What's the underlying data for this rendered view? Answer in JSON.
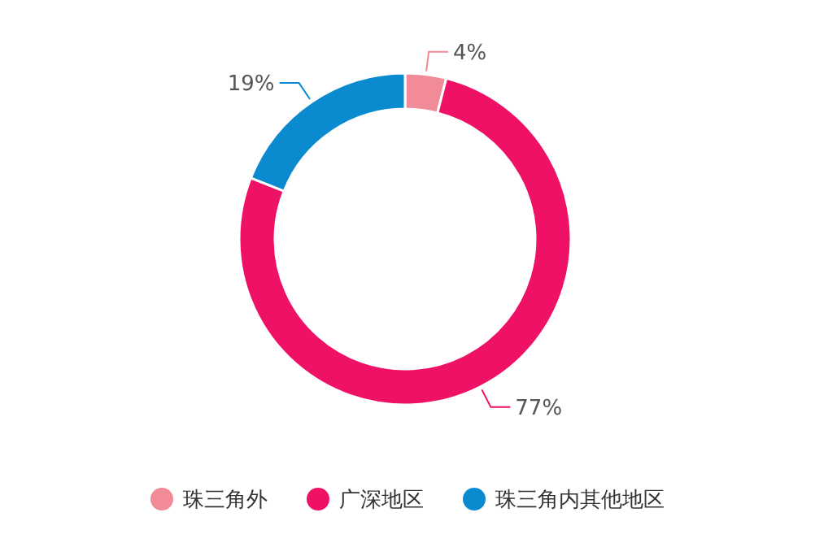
{
  "chart_data": {
    "type": "donut",
    "categories": [
      "珠三角外",
      "广深地区",
      "珠三角内其他地区"
    ],
    "values": [
      4,
      77,
      19
    ],
    "colors": [
      "#f28b98",
      "#ee1166",
      "#0b8bcf"
    ],
    "value_labels": [
      "4%",
      "77%",
      "19%"
    ],
    "legend": "bottom"
  }
}
